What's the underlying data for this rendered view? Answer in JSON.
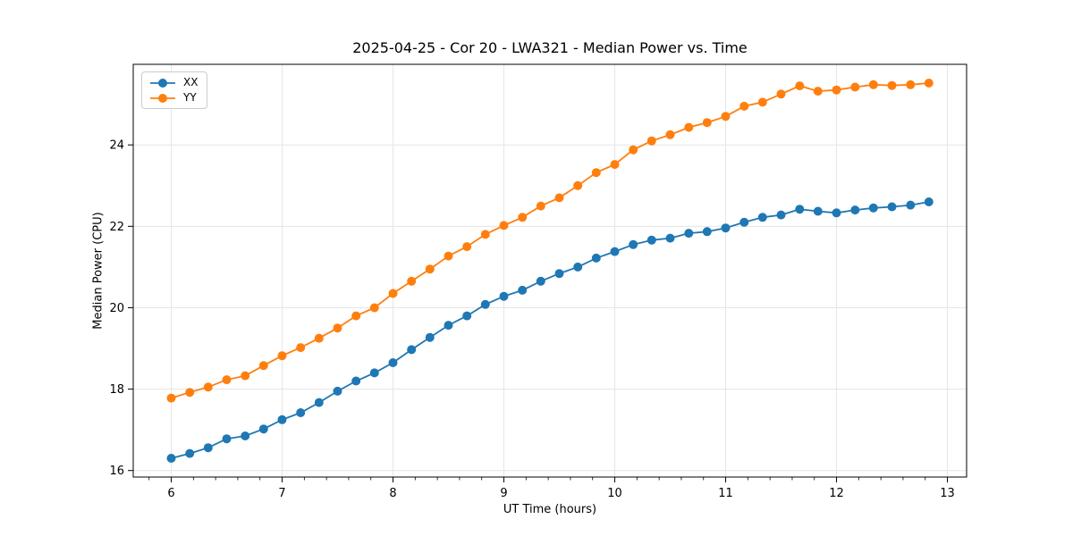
{
  "chart_data": {
    "type": "line",
    "title": "2025-04-25 - Cor 20 - LWA321 - Median Power vs. Time",
    "xlabel": "UT Time (hours)",
    "ylabel": "Median Power (CPU)",
    "xlim": [
      5.657,
      13.173
    ],
    "ylim": [
      15.84,
      25.98
    ],
    "xticks": [
      6,
      7,
      8,
      9,
      10,
      11,
      12,
      13
    ],
    "yticks": [
      16,
      18,
      20,
      22,
      24
    ],
    "x_minor_step": 0.2,
    "grid": true,
    "legend_position": "upper-left",
    "x": [
      6.0,
      6.167,
      6.333,
      6.5,
      6.667,
      6.833,
      7.0,
      7.167,
      7.333,
      7.5,
      7.667,
      7.833,
      8.0,
      8.167,
      8.333,
      8.5,
      8.667,
      8.833,
      9.0,
      9.167,
      9.333,
      9.5,
      9.667,
      9.833,
      10.0,
      10.167,
      10.333,
      10.5,
      10.667,
      10.833,
      11.0,
      11.167,
      11.333,
      11.5,
      11.667,
      11.833,
      12.0,
      12.167,
      12.333,
      12.5,
      12.667,
      12.833
    ],
    "series": [
      {
        "name": "XX",
        "color": "#1f77b4",
        "values": [
          16.3,
          16.42,
          16.56,
          16.78,
          16.85,
          17.02,
          17.25,
          17.42,
          17.67,
          17.95,
          18.2,
          18.4,
          18.65,
          18.97,
          19.27,
          19.57,
          19.8,
          20.08,
          20.28,
          20.43,
          20.65,
          20.84,
          21.0,
          21.22,
          21.38,
          21.55,
          21.66,
          21.71,
          21.83,
          21.87,
          21.96,
          22.1,
          22.22,
          22.28,
          22.42,
          22.37,
          22.33,
          22.4,
          22.45,
          22.48,
          22.52,
          22.6
        ]
      },
      {
        "name": "YY",
        "color": "#ff7f0e",
        "values": [
          17.78,
          17.92,
          18.05,
          18.23,
          18.33,
          18.58,
          18.82,
          19.02,
          19.25,
          19.5,
          19.8,
          20.0,
          20.35,
          20.65,
          20.95,
          21.27,
          21.5,
          21.8,
          22.02,
          22.22,
          22.5,
          22.7,
          23.0,
          23.32,
          23.52,
          23.88,
          24.1,
          24.25,
          24.43,
          24.55,
          24.7,
          24.95,
          25.05,
          25.25,
          25.45,
          25.32,
          25.35,
          25.42,
          25.48,
          25.46,
          25.48,
          25.52
        ]
      }
    ]
  },
  "colors": {
    "background": "#ffffff",
    "grid": "#e5e5e5",
    "spine": "#000000",
    "tick": "#000000",
    "text": "#000000",
    "legend_border": "#cccccc"
  }
}
